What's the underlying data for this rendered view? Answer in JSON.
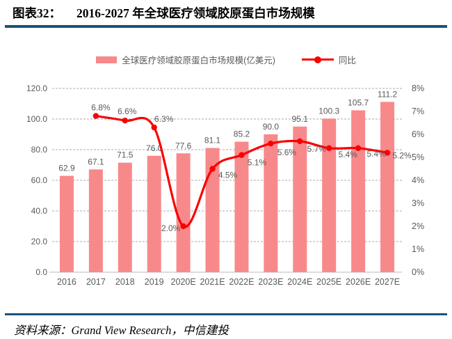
{
  "header": {
    "figure_label": "图表32：",
    "title": "2016-2027 年全球医疗领域胶原蛋白市场规模"
  },
  "legend": {
    "bar_label": "全球医疗领域胶原蛋白市场规模(亿美元)",
    "line_label": "同比"
  },
  "chart_data": {
    "type": "bar+line",
    "title": "2016-2027 年全球医疗领域胶原蛋白市场规模",
    "categories": [
      "2016",
      "2017",
      "2018",
      "2019",
      "2020E",
      "2021E",
      "2022E",
      "2023E",
      "2024E",
      "2025E",
      "2026E",
      "2027E"
    ],
    "series": [
      {
        "name": "全球医疗领域胶原蛋白市场规模(亿美元)",
        "type": "bar",
        "axis": "left",
        "values": [
          62.9,
          67.1,
          71.5,
          76.0,
          77.6,
          81.1,
          85.2,
          90.0,
          95.1,
          100.3,
          105.7,
          111.2
        ],
        "labels": [
          "62.9",
          "67.1",
          "71.5",
          "76.0",
          "77.6",
          "81.1",
          "85.2",
          "90.0",
          "95.1",
          "100.3",
          "105.7",
          "111.2"
        ]
      },
      {
        "name": "同比",
        "type": "line",
        "axis": "right",
        "values": [
          null,
          6.8,
          6.6,
          6.3,
          2.0,
          4.5,
          5.1,
          5.6,
          5.7,
          5.4,
          5.4,
          5.2
        ],
        "labels": [
          null,
          "6.8%",
          "6.6%",
          "6.3%",
          "2.0%",
          "4.5%",
          "5.1%",
          "5.6%",
          "5.7%",
          "5.4%",
          "5.4%",
          "5.2%"
        ],
        "label_offsets": [
          null,
          [
            7,
            -8
          ],
          [
            3,
            -9
          ],
          [
            14,
            -8
          ],
          [
            -18,
            7
          ],
          [
            22,
            13
          ],
          [
            22,
            15
          ],
          [
            23,
            17
          ],
          [
            24,
            15
          ],
          [
            27,
            13
          ],
          [
            26,
            12
          ],
          [
            21,
            8
          ]
        ]
      }
    ],
    "left_axis": {
      "min": 0,
      "max": 120,
      "step": 20,
      "tick_labels": [
        "0.0",
        "20.0",
        "40.0",
        "60.0",
        "80.0",
        "100.0",
        "120.0"
      ]
    },
    "right_axis": {
      "min": 0,
      "max": 8,
      "step": 1,
      "tick_labels": [
        "0%",
        "1%",
        "2%",
        "3%",
        "4%",
        "5%",
        "6%",
        "7%",
        "8%"
      ]
    },
    "grid": true,
    "legend_position": "top",
    "colors": {
      "bar": "#F8898B",
      "line": "#FA0000",
      "grid": "#ABABAB",
      "axis_line": "#C6C6C6",
      "axis_text": "#595959",
      "rule": "#1B5379"
    }
  },
  "footer": {
    "source": "资料来源：Grand View Research，中信建投"
  }
}
